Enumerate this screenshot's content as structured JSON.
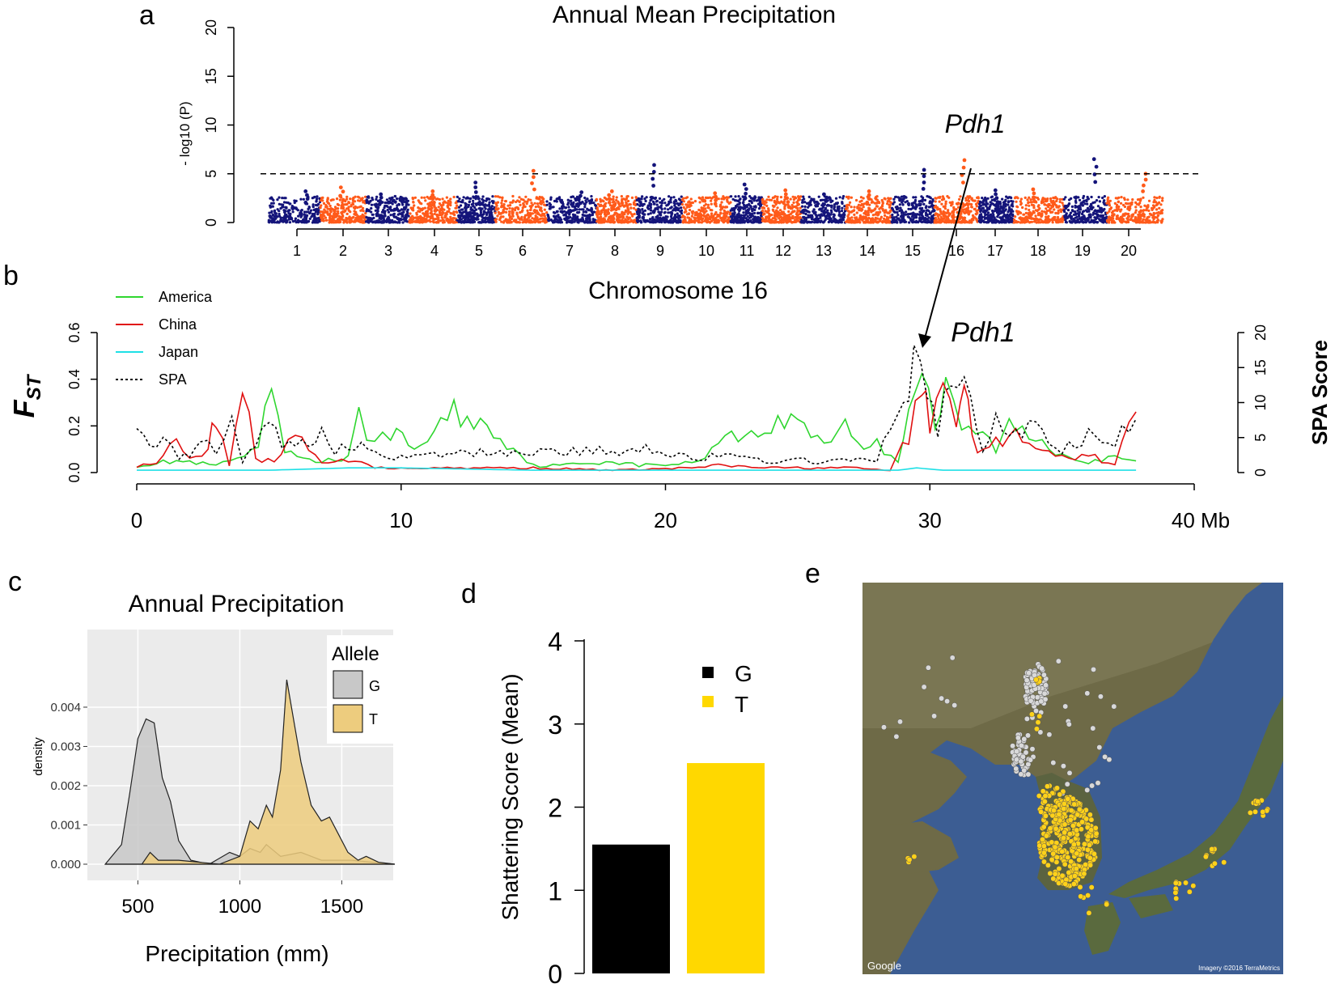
{
  "figure": {
    "panel_labels": [
      "a",
      "b",
      "c",
      "d",
      "e"
    ]
  },
  "chart_data": [
    {
      "panel": "a",
      "type": "scatter",
      "title": "Annual Mean Precipitation",
      "ylabel": "- log10 (P)",
      "xlabel": "",
      "ylim": [
        0,
        20
      ],
      "yticks": [
        0,
        5,
        10,
        15,
        20
      ],
      "categories": [
        "1",
        "2",
        "3",
        "4",
        "5",
        "6",
        "7",
        "8",
        "9",
        "10",
        "11",
        "12",
        "13",
        "14",
        "15",
        "16",
        "17",
        "18",
        "19",
        "20"
      ],
      "threshold": 5.0,
      "colors": {
        "odd": "#14147a",
        "even": "#ff5a1a"
      },
      "peaks": [
        3.2,
        3.6,
        2.9,
        3.2,
        4.1,
        5.3,
        3.1,
        3.2,
        5.9,
        3.0,
        3.9,
        3.3,
        2.9,
        3.2,
        5.4,
        6.4,
        3.3,
        3.4,
        6.5,
        5.0
      ],
      "annotation": "Pdh1",
      "annotation_chromosome": "16"
    },
    {
      "panel": "b",
      "type": "line",
      "title": "Chromosome 16",
      "ylabel": "F",
      "ylabel_sub": "ST",
      "y2label": "SPA Score",
      "xlabel": "",
      "xlim": [
        0,
        40
      ],
      "ylim": [
        0,
        0.6
      ],
      "y2lim": [
        0,
        20
      ],
      "xticks": [
        "0",
        "10",
        "20",
        "30",
        "40 Mb"
      ],
      "xtick_values": [
        0,
        10,
        20,
        30,
        40
      ],
      "yticks": [
        "0.0",
        "0.2",
        "0.4",
        "0.6"
      ],
      "y2ticks": [
        "0",
        "5",
        "10",
        "15",
        "20"
      ],
      "annotation": "Pdh1",
      "annotation_x": 29.8,
      "series": [
        {
          "name": "America",
          "color": "#2fd62f",
          "dash": "",
          "points": [
            [
              0,
              0.03
            ],
            [
              1.5,
              0.05
            ],
            [
              3,
              0.03
            ],
            [
              4.6,
              0.09
            ],
            [
              5.1,
              0.38
            ],
            [
              5.6,
              0.08
            ],
            [
              7,
              0.05
            ],
            [
              8,
              0.06
            ],
            [
              8.4,
              0.23
            ],
            [
              9,
              0.13
            ],
            [
              9.6,
              0.18
            ],
            [
              10.5,
              0.1
            ],
            [
              12,
              0.26
            ],
            [
              13.5,
              0.18
            ],
            [
              15,
              0.03
            ],
            [
              16,
              0.03
            ],
            [
              18,
              0.05
            ],
            [
              19,
              0.03
            ],
            [
              21,
              0.04
            ],
            [
              22,
              0.12
            ],
            [
              22.5,
              0.21
            ],
            [
              23,
              0.14
            ],
            [
              24,
              0.2
            ],
            [
              25,
              0.23
            ],
            [
              26,
              0.13
            ],
            [
              26.8,
              0.21
            ],
            [
              27.5,
              0.11
            ],
            [
              28,
              0.12
            ],
            [
              28.8,
              0.05
            ],
            [
              29.2,
              0.3
            ],
            [
              29.7,
              0.46
            ],
            [
              30.2,
              0.2
            ],
            [
              30.6,
              0.34
            ],
            [
              31.2,
              0.18
            ],
            [
              32,
              0.17
            ],
            [
              32.5,
              0.1
            ],
            [
              33,
              0.2
            ],
            [
              34,
              0.15
            ],
            [
              35,
              0.08
            ],
            [
              36,
              0.05
            ],
            [
              37,
              0.06
            ],
            [
              37.8,
              0.05
            ]
          ]
        },
        {
          "name": "China",
          "color": "#e01010",
          "dash": "",
          "points": [
            [
              0,
              0.02
            ],
            [
              1,
              0.06
            ],
            [
              1.5,
              0.19
            ],
            [
              2,
              0.05
            ],
            [
              2.7,
              0.1
            ],
            [
              3,
              0.25
            ],
            [
              3.5,
              0.03
            ],
            [
              4,
              0.4
            ],
            [
              4.5,
              0.05
            ],
            [
              5.2,
              0.06
            ],
            [
              6,
              0.15
            ],
            [
              7,
              0.04
            ],
            [
              8,
              0.05
            ],
            [
              8.5,
              0.06
            ],
            [
              9,
              0.02
            ],
            [
              12,
              0.02
            ],
            [
              15,
              0.02
            ],
            [
              18,
              0.01
            ],
            [
              21,
              0.02
            ],
            [
              22,
              0.03
            ],
            [
              24,
              0.02
            ],
            [
              27,
              0.02
            ],
            [
              28.5,
              0.01
            ],
            [
              29.2,
              0.15
            ],
            [
              29.7,
              0.38
            ],
            [
              30,
              0.2
            ],
            [
              30.5,
              0.35
            ],
            [
              31,
              0.25
            ],
            [
              31.3,
              0.43
            ],
            [
              31.6,
              0.14
            ],
            [
              32,
              0.08
            ],
            [
              33,
              0.17
            ],
            [
              34,
              0.1
            ],
            [
              35,
              0.06
            ],
            [
              36,
              0.07
            ],
            [
              37,
              0.04
            ],
            [
              37.8,
              0.26
            ]
          ]
        },
        {
          "name": "Japan",
          "color": "#1ee0e6",
          "dash": "",
          "points": [
            [
              0,
              0.01
            ],
            [
              5,
              0.01
            ],
            [
              8,
              0.02
            ],
            [
              10,
              0.02
            ],
            [
              15,
              0.01
            ],
            [
              20,
              0.01
            ],
            [
              25,
              0.01
            ],
            [
              28.8,
              0.01
            ],
            [
              29.5,
              0.02
            ],
            [
              30.5,
              0.01
            ],
            [
              33,
              0.01
            ],
            [
              35,
              0.01
            ],
            [
              37.8,
              0.01
            ]
          ]
        },
        {
          "name": "SPA",
          "color": "#000000",
          "dash": "3,3",
          "points": [
            [
              0,
              0.2
            ],
            [
              0.5,
              0.1
            ],
            [
              1,
              0.15
            ],
            [
              1.6,
              0.06
            ],
            [
              2,
              0.08
            ],
            [
              2.4,
              0.16
            ],
            [
              3,
              0.1
            ],
            [
              3.6,
              0.2
            ],
            [
              4,
              0.05
            ],
            [
              5,
              0.22
            ],
            [
              5.5,
              0.1
            ],
            [
              6,
              0.14
            ],
            [
              6.5,
              0.12
            ],
            [
              7,
              0.17
            ],
            [
              7.5,
              0.1
            ],
            [
              8,
              0.11
            ],
            [
              9,
              0.1
            ],
            [
              10,
              0.06
            ],
            [
              12,
              0.08
            ],
            [
              14,
              0.09
            ],
            [
              16,
              0.09
            ],
            [
              18,
              0.09
            ],
            [
              19.5,
              0.11
            ],
            [
              20,
              0.09
            ],
            [
              21,
              0.06
            ],
            [
              22,
              0.07
            ],
            [
              24,
              0.05
            ],
            [
              26,
              0.05
            ],
            [
              28,
              0.05
            ],
            [
              29,
              0.35
            ],
            [
              29.4,
              0.45
            ],
            [
              29.9,
              0.38
            ],
            [
              30.3,
              0.15
            ],
            [
              30.8,
              0.42
            ],
            [
              31.3,
              0.38
            ],
            [
              32,
              0.1
            ],
            [
              32.5,
              0.22
            ],
            [
              33,
              0.16
            ],
            [
              34,
              0.2
            ],
            [
              35,
              0.09
            ],
            [
              36,
              0.16
            ],
            [
              37,
              0.13
            ],
            [
              37.8,
              0.23
            ]
          ]
        }
      ]
    },
    {
      "panel": "c",
      "type": "area",
      "title": "Annual Precipitation",
      "xlabel": "Precipitation (mm)",
      "ylabel": "density",
      "xlim": [
        300,
        1800
      ],
      "ylim": [
        0,
        0.0047
      ],
      "xticks": [
        "500",
        "1000",
        "1500"
      ],
      "xtick_values": [
        500,
        1000,
        1500
      ],
      "yticks": [
        "0.000",
        "0.001",
        "0.002",
        "0.003",
        "0.004"
      ],
      "ytick_values": [
        0,
        0.001,
        0.002,
        0.003,
        0.004
      ],
      "legend_title": "Allele",
      "series": [
        {
          "name": "G",
          "color": "#c8c8c8",
          "points": [
            [
              340,
              0
            ],
            [
              420,
              0.0005
            ],
            [
              460,
              0.0018
            ],
            [
              500,
              0.0032
            ],
            [
              540,
              0.0037
            ],
            [
              580,
              0.0036
            ],
            [
              620,
              0.0022
            ],
            [
              660,
              0.0016
            ],
            [
              700,
              0.0006
            ],
            [
              760,
              0.0001
            ],
            [
              850,
              0
            ],
            [
              950,
              0.0003
            ],
            [
              1000,
              0.0002
            ],
            [
              1050,
              0.0004
            ],
            [
              1100,
              0.0003
            ],
            [
              1130,
              0.0005
            ],
            [
              1200,
              0.0002
            ],
            [
              1300,
              0.0003
            ],
            [
              1400,
              0.0001
            ],
            [
              1550,
              0.0001
            ],
            [
              1650,
              5e-05
            ],
            [
              1760,
              0
            ]
          ]
        },
        {
          "name": "T",
          "color": "#edcc7e",
          "points": [
            [
              340,
              0
            ],
            [
              520,
              0
            ],
            [
              560,
              0.0003
            ],
            [
              600,
              0.0001
            ],
            [
              700,
              0.0001
            ],
            [
              900,
              0
            ],
            [
              1000,
              0.0002
            ],
            [
              1050,
              0.0011
            ],
            [
              1090,
              0.0009
            ],
            [
              1130,
              0.0015
            ],
            [
              1160,
              0.0012
            ],
            [
              1200,
              0.0024
            ],
            [
              1230,
              0.0047
            ],
            [
              1270,
              0.0035
            ],
            [
              1300,
              0.0026
            ],
            [
              1350,
              0.0015
            ],
            [
              1400,
              0.0011
            ],
            [
              1440,
              0.0012
            ],
            [
              1480,
              0.0008
            ],
            [
              1530,
              0.0003
            ],
            [
              1580,
              0.0001
            ],
            [
              1620,
              0.0002
            ],
            [
              1680,
              5e-05
            ],
            [
              1760,
              0
            ]
          ]
        }
      ]
    },
    {
      "panel": "d",
      "type": "bar",
      "title": "",
      "xlabel": "",
      "ylabel": "Shattering Score (Mean)",
      "ylim": [
        0,
        4
      ],
      "yticks": [
        "0",
        "1",
        "2",
        "3",
        "4"
      ],
      "categories": [
        "G",
        "T"
      ],
      "values": [
        1.55,
        2.53
      ],
      "colors": [
        "#000000",
        "#ffd800"
      ]
    }
  ],
  "map": {
    "panel": "e",
    "credit_left": "Google",
    "credit_right": "Imagery ©2016 TerraMetrics",
    "colors": {
      "sea": "#3c5d93",
      "land": "#6e6a47",
      "dot_g": "#d9d9d9",
      "dot_t": "#ffd21a"
    }
  }
}
